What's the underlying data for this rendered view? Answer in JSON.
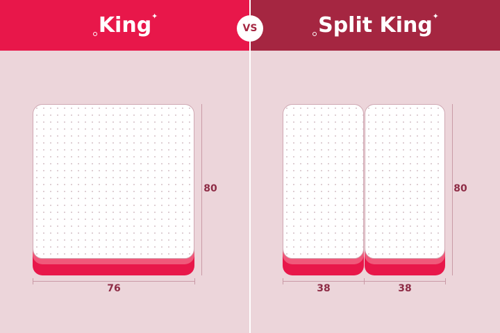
{
  "left": {
    "title": "King",
    "width_label": "76",
    "length_label": "80"
  },
  "right": {
    "title": "Split King",
    "width_labels": [
      "38",
      "38"
    ],
    "length_label": "80"
  },
  "vs_label": "VS",
  "colors": {
    "king_header": "#e8174a",
    "split_king_header": "#a52641",
    "background": "#ecd5da",
    "dimension_text": "#8e2c46",
    "mattress_base": "#e8174a"
  }
}
